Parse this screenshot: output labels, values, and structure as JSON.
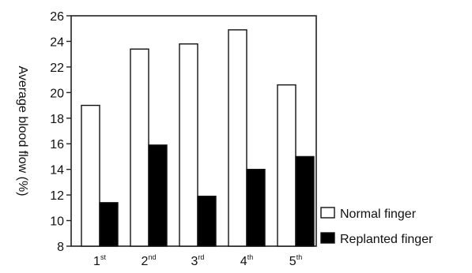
{
  "chart_data": {
    "type": "bar",
    "categories": [
      {
        "main": "1",
        "sup": "st"
      },
      {
        "main": "2",
        "sup": "nd"
      },
      {
        "main": "3",
        "sup": "rd"
      },
      {
        "main": "4",
        "sup": "th"
      },
      {
        "main": "5",
        "sup": "th"
      }
    ],
    "series": [
      {
        "name": "Normal finger",
        "values": [
          19.0,
          23.4,
          23.8,
          24.9,
          20.6
        ],
        "color": "#ffffff"
      },
      {
        "name": "Replanted finger",
        "values": [
          11.4,
          15.9,
          11.9,
          14.0,
          15.0
        ],
        "color": "#000000"
      }
    ],
    "ylabel": "Average blood flow (%)",
    "xlabel": "",
    "ylim": [
      8,
      26
    ],
    "yticks": [
      "8",
      "10",
      "12",
      "14",
      "16",
      "18",
      "20",
      "22",
      "24",
      "26"
    ],
    "grid": false,
    "legend_position": "bottom-right"
  }
}
